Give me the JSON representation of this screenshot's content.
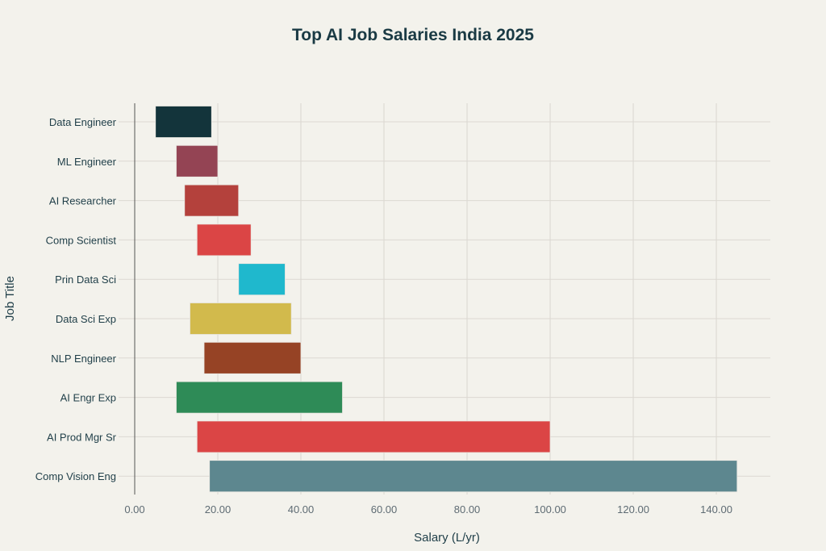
{
  "chart_data": {
    "type": "bar",
    "orientation": "horizontal",
    "style": "floating range bars",
    "title": "Top AI Job Salaries India 2025",
    "xlabel": "Salary (L/yr)",
    "ylabel": "Job Title",
    "xlim": [
      0,
      153
    ],
    "xticks": [
      "0.00",
      "20.00",
      "40.00",
      "60.00",
      "80.00",
      "100.00",
      "120.00",
      "140.00"
    ],
    "grid": true,
    "categories": [
      "Data Engineer",
      "ML Engineer",
      "AI Researcher",
      "Comp Scientist",
      "Prin Data Sci",
      "Data Sci Exp",
      "NLP Engineer",
      "AI Engr Exp",
      "AI Prod Mgr Sr",
      "Comp Vision Eng"
    ],
    "min": [
      5,
      10,
      12,
      15,
      25,
      13.3,
      16.7,
      10,
      15,
      18
    ],
    "max": [
      18.5,
      20,
      25,
      28,
      36.2,
      37.7,
      40,
      50,
      100,
      145
    ],
    "colors": [
      "#13343b",
      "#944454",
      "#b4413c",
      "#db4545",
      "#1fb8cd",
      "#d2ba4c",
      "#964325",
      "#2e8b57",
      "#db4545",
      "#5d878f"
    ]
  }
}
